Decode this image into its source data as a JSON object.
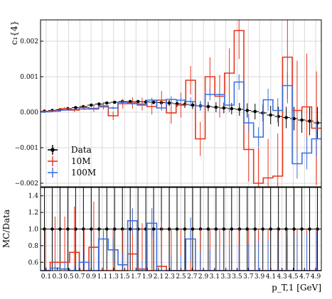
{
  "chart_data": [
    {
      "type": "line",
      "panel": "main",
      "ylabel": "c₁{4}",
      "xlabel": "",
      "ylim": [
        -0.0021,
        0.0026
      ],
      "yticks": [
        {
          "value": 0.002,
          "label": "0.002"
        },
        {
          "value": 0.001,
          "label": "0.001"
        },
        {
          "value": 0.0,
          "label": "0.000"
        },
        {
          "value": -0.001,
          "label": "−0.001"
        },
        {
          "value": -0.002,
          "label": "−0.002"
        }
      ],
      "grid": true,
      "legend_position": "lower-left",
      "series": [
        {
          "name": "Data",
          "style": "points",
          "color": "#000000",
          "y": [
            3e-05,
            5e-05,
            7e-05,
            0.0001,
            0.00013,
            0.00016,
            0.0002,
            0.00023,
            0.00026,
            0.00028,
            0.0003,
            0.0003,
            0.0003,
            0.00029,
            0.00028,
            0.00027,
            0.00026,
            0.00024,
            0.00022,
            0.0002,
            0.00018,
            0.00016,
            0.00014,
            0.00012,
            0.0001,
            8e-05,
            5e-05,
            2e-05,
            -2e-05,
            -8e-05,
            -0.00012,
            -0.00015,
            -0.00018,
            -0.00022,
            -0.00025,
            -0.0003
          ],
          "err": [
            2e-05,
            2e-05,
            2e-05,
            2e-05,
            3e-05,
            3e-05,
            3e-05,
            3e-05,
            4e-05,
            4e-05,
            4e-05,
            5e-05,
            5e-05,
            6e-05,
            6e-05,
            7e-05,
            8e-05,
            9e-05,
            0.0001,
            0.00011,
            0.00012,
            0.00013,
            0.00014,
            0.00015,
            0.00016,
            0.00018,
            0.0002,
            0.00022,
            0.00024,
            0.00026,
            0.00028,
            0.0003,
            0.00033,
            0.00036,
            0.0004,
            0.00045
          ]
        },
        {
          "name": "10M",
          "style": "step",
          "color": "#e8341c",
          "y": [
            2e-05,
            4e-05,
            0.0001,
            6e-05,
            0.00013,
            9e-05,
            0.00018,
            -0.0001,
            0.00024,
            0.00026,
            0.00023,
            0.00016,
            0.00034,
            -2e-05,
            0.0002,
            0.0009,
            -0.00075,
            0.001,
            0.00045,
            0.0011,
            0.0023,
            -0.00105,
            -0.002,
            -0.00185,
            -0.0018,
            0.00155,
            5e-05,
            0.00015,
            -0.00045
          ],
          "err": [
            3e-05,
            4e-05,
            5e-05,
            6e-05,
            7e-05,
            8e-05,
            0.0001,
            0.00012,
            0.00014,
            0.00016,
            0.00018,
            0.00022,
            0.00026,
            0.0003,
            0.00035,
            0.0004,
            0.00048,
            0.00055,
            0.0006,
            0.0007,
            0.0008,
            0.0009,
            0.001,
            0.0011,
            0.0012,
            0.0013,
            0.0014,
            0.0015,
            0.0016
          ]
        },
        {
          "name": "100M",
          "style": "step",
          "color": "#3a6fe0",
          "y": [
            1e-05,
            3e-05,
            6e-05,
            8e-05,
            9e-05,
            0.00011,
            0.00015,
            0.00012,
            0.00028,
            0.00024,
            0.0002,
            0.00034,
            0.00012,
            0.00036,
            0.00034,
            0.0003,
            0.00018,
            0.0005,
            0.0005,
            0.0002,
            0.00085,
            -0.0003,
            -0.0007,
            0.00035,
            5e-05,
            0.00075,
            -0.00145,
            -0.00115,
            -0.00075
          ],
          "err": [
            1e-05,
            1e-05,
            2e-05,
            2e-05,
            2e-05,
            3e-05,
            3e-05,
            4e-05,
            4e-05,
            5e-05,
            6e-05,
            7e-05,
            8e-05,
            9e-05,
            0.0001,
            0.00012,
            0.00014,
            0.00016,
            0.00018,
            0.0002,
            0.00022,
            0.00025,
            0.00028,
            0.00031,
            0.00034,
            0.00038,
            0.00042,
            0.00046,
            0.0005
          ]
        }
      ]
    },
    {
      "type": "line",
      "panel": "ratio",
      "ylabel": "MC/Data",
      "xlabel": "p_T,1 [GeV]",
      "ylim": [
        0.5,
        1.5
      ],
      "yticks": [
        {
          "value": 1.4,
          "label": "1.4"
        },
        {
          "value": 1.2,
          "label": "1.2"
        },
        {
          "value": 1.0,
          "label": "1.0"
        },
        {
          "value": 0.8,
          "label": "0.8"
        },
        {
          "value": 0.6,
          "label": "0.6"
        }
      ],
      "xtick_labels": [
        "0.1",
        "0.3",
        "0.5",
        "0.7",
        "0.9",
        "1.1",
        "1.3",
        "1.5",
        "1.7",
        "1.9",
        "2.1",
        "2.3",
        "2.5",
        "2.7",
        "2.9",
        "3.1",
        "3.3",
        "3.5",
        "3.7",
        "3.9",
        "4.1",
        "4.3",
        "4.5",
        "4.7",
        "4.9"
      ],
      "series": [
        {
          "name": "Data",
          "style": "points",
          "color": "#000000",
          "y": [
            1.0,
            1.0,
            1.0,
            1.0,
            1.0,
            1.0,
            1.0,
            1.0,
            1.0,
            1.0,
            1.0,
            1.0,
            1.0,
            1.0,
            1.0,
            1.0,
            1.0,
            1.0,
            1.0,
            1.0,
            1.0,
            1.0,
            1.0,
            1.0,
            1.0,
            1.0,
            1.0,
            1.0,
            1.0,
            1.0,
            1.0,
            1.0,
            1.0,
            1.0,
            1.0,
            1.0
          ],
          "err": [
            0.55,
            0.55,
            0.55,
            0.55,
            0.55,
            0.55,
            0.55,
            0.55,
            0.55,
            0.55,
            0.55,
            0.55,
            0.55,
            0.55,
            0.55,
            0.55,
            0.55,
            0.55,
            0.55,
            0.55,
            0.55,
            0.55,
            0.55,
            0.55,
            0.55,
            0.55,
            0.55,
            0.55,
            0.55,
            0.55,
            0.55,
            0.55,
            0.55,
            0.55,
            0.55,
            0.55
          ]
        },
        {
          "name": "10M",
          "style": "step",
          "color": "#e8341c",
          "y": [
            0.45,
            0.6,
            0.6,
            0.72,
            0.45,
            0.78,
            0.45,
            0.45,
            0.45,
            0.7,
            0.52,
            0.45,
            0.55,
            0.45,
            0.45,
            0.45,
            0.45,
            0.45,
            0.45,
            0.45,
            0.45,
            0.45,
            0.45,
            0.45,
            0.45,
            0.45,
            0.45,
            0.45,
            0.45
          ],
          "err": [
            0.55,
            0.55,
            0.55,
            0.55,
            0.55,
            0.55,
            0.55,
            0.55,
            0.55,
            0.55,
            0.55,
            0.55,
            0.55,
            0.55,
            0.55,
            0.55,
            0.55,
            0.55,
            0.55,
            0.55,
            0.55,
            0.55,
            0.55,
            0.55,
            0.55,
            0.55,
            0.55,
            0.55,
            0.55
          ]
        },
        {
          "name": "100M",
          "style": "step",
          "color": "#3a6fe0",
          "y": [
            0.45,
            0.53,
            0.52,
            0.45,
            0.6,
            0.45,
            0.88,
            0.75,
            0.57,
            1.1,
            0.45,
            1.07,
            0.45,
            0.45,
            0.45,
            0.88,
            0.45,
            0.45,
            0.45,
            0.45,
            0.45,
            0.45,
            0.45,
            0.45,
            0.45,
            0.45,
            0.45,
            0.45,
            0.45
          ],
          "err": [
            0.1,
            0.1,
            0.1,
            0.1,
            0.12,
            0.12,
            0.12,
            0.14,
            0.14,
            0.15,
            0.16,
            0.18,
            0.2,
            0.22,
            0.24,
            0.26,
            0.28,
            0.3,
            0.32,
            0.34,
            0.36,
            0.38,
            0.4,
            0.42,
            0.44,
            0.46,
            0.48,
            0.5,
            0.52
          ]
        }
      ]
    }
  ]
}
